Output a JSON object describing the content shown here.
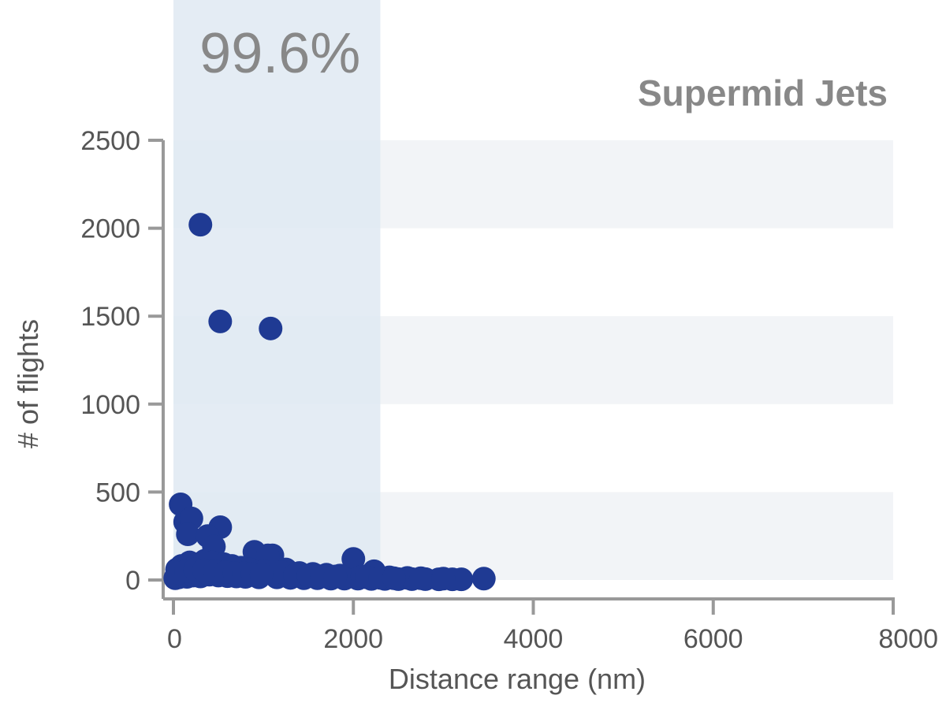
{
  "chart_data": {
    "type": "scatter",
    "title": "Supermid Jets",
    "xlabel": "Distance range (nm)",
    "ylabel": "# of flights",
    "xlim": [
      0,
      8000
    ],
    "ylim": [
      0,
      2500
    ],
    "xticks": [
      0,
      2000,
      4000,
      6000,
      8000
    ],
    "yticks": [
      0,
      500,
      1000,
      1500,
      2000,
      2500
    ],
    "grid": "alternating horizontal bands",
    "highlight_region": {
      "x_from": 0,
      "x_to": 2300,
      "label": "99.6%"
    },
    "colors": {
      "points": "#1f3a93",
      "highlight": "#dfe9f2",
      "band": "#f2f4f7",
      "axis": "#999999",
      "text": "#888888"
    },
    "series": [
      {
        "x": [
          300,
          520,
          1080,
          80,
          130,
          200,
          520,
          160,
          380,
          900,
          1100,
          1250,
          2230,
          2000,
          1050,
          450,
          20,
          60,
          100,
          150,
          220,
          300,
          400,
          500,
          600,
          700,
          800,
          950,
          1150,
          1300,
          1450,
          1600,
          1750,
          1900,
          2050,
          2200,
          2350,
          2500,
          2650,
          2800,
          2950,
          3100,
          3200,
          3450,
          40,
          90,
          180,
          260,
          350,
          430,
          560,
          650,
          750,
          850,
          1000,
          1200,
          1400,
          1550,
          1700,
          1850,
          2100,
          2400,
          2600,
          2750,
          3000,
          60,
          140,
          240,
          340,
          460,
          580,
          680,
          780,
          880,
          980,
          1350,
          1500,
          1650,
          1800,
          2150,
          2300,
          2450
        ],
        "y": [
          2020,
          1470,
          1430,
          430,
          330,
          350,
          300,
          260,
          250,
          160,
          140,
          60,
          50,
          120,
          140,
          190,
          10,
          15,
          20,
          18,
          25,
          20,
          30,
          25,
          22,
          20,
          18,
          15,
          15,
          12,
          10,
          10,
          8,
          8,
          8,
          6,
          6,
          5,
          5,
          5,
          4,
          4,
          4,
          8,
          60,
          80,
          100,
          90,
          110,
          100,
          90,
          80,
          70,
          60,
          50,
          45,
          40,
          35,
          30,
          25,
          20,
          15,
          12,
          10,
          8,
          40,
          50,
          60,
          55,
          50,
          45,
          40,
          38,
          35,
          30,
          28,
          25,
          22,
          20,
          15,
          12,
          10
        ]
      }
    ]
  }
}
